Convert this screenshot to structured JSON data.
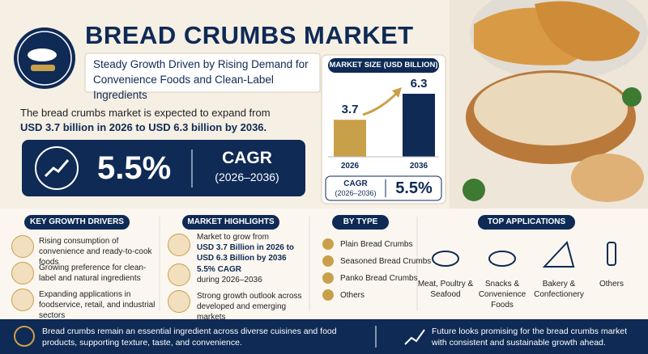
{
  "header": {
    "title": "BREAD CRUMBS MARKET",
    "subtitle": "Steady Growth Driven by Rising Demand for Convenience Foods and Clean-Label Ingredients"
  },
  "intro": {
    "text": "The bread crumbs market is expected to expand from",
    "highlight": "USD 3.7 billion in 2026 to USD 6.3 billion by 2036."
  },
  "cagr_banner": {
    "value": "5.5%",
    "label": "CAGR",
    "period": "(2026–2036)"
  },
  "chart_data": {
    "type": "bar",
    "title": "MARKET SIZE (USD BILLION)",
    "categories": [
      "2026",
      "2036"
    ],
    "values": [
      3.7,
      6.3
    ],
    "colors": [
      "#c9a04a",
      "#0e2a55"
    ]
  },
  "cagr_box": {
    "label": "CAGR",
    "period": "(2026–2036)",
    "value": "5.5%"
  },
  "key_growth_drivers": {
    "title": "KEY GROWTH DRIVERS",
    "items": [
      "Rising consumption of convenience and ready-to-cook foods",
      "Growing preference for clean-label and natural ingredients",
      "Expanding applications in foodservice, retail, and industrial sectors"
    ]
  },
  "market_highlights": {
    "title": "MARKET HIGHLIGHTS",
    "items": [
      {
        "text": "Market to grow from",
        "highlight": "USD 3.7 Billion in 2026 to USD 6.3 Billion by 2036"
      },
      {
        "highlight": "5.5% CAGR",
        "text": "during 2026–2036"
      },
      {
        "text": "Strong growth outlook across developed and emerging markets"
      }
    ]
  },
  "by_type": {
    "title": "BY TYPE",
    "items": [
      "Plain Bread Crumbs",
      "Seasoned Bread Crumbs",
      "Panko Bread Crumbs",
      "Others"
    ]
  },
  "top_applications": {
    "title": "TOP APPLICATIONS",
    "items": [
      "Meat, Poultry & Seafood",
      "Snacks & Convenience Foods",
      "Bakery & Confectionery",
      "Others"
    ]
  },
  "footer": {
    "left": "Bread crumbs remain an essential ingredient across diverse cuisines and food products, supporting texture, taste, and convenience.",
    "right": "Future looks promising for the bread crumbs market with consistent and sustainable growth ahead."
  }
}
